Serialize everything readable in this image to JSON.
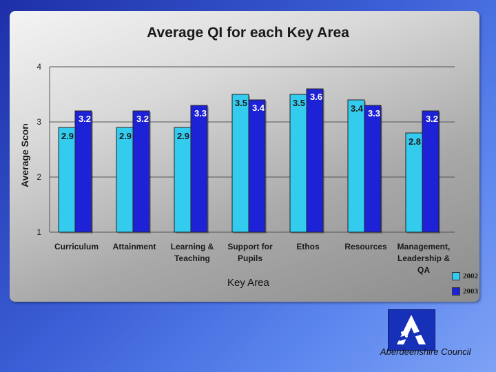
{
  "chart_data": {
    "type": "bar",
    "title": "Average QI  for each Key Area",
    "xlabel": "Key Area",
    "ylabel": "Average Score",
    "ylim": [
      1,
      4
    ],
    "yticks": [
      "1",
      "2",
      "3",
      "4"
    ],
    "grid": true,
    "legend_position": "bottom-right",
    "categories": [
      [
        "Curriculum"
      ],
      [
        "Attainment"
      ],
      [
        "Learning &",
        "Teaching"
      ],
      [
        "Support for",
        "Pupils"
      ],
      [
        "Ethos"
      ],
      [
        "Resources"
      ],
      [
        "Management,",
        "Leadership &",
        "QA"
      ]
    ],
    "series": [
      {
        "name": "2002",
        "color": "#33ccee",
        "values": [
          2.9,
          2.9,
          2.9,
          3.5,
          3.5,
          3.4,
          2.8
        ],
        "labels": [
          "2.9",
          "2.9",
          "2.9",
          "3.5",
          "3.5",
          "3.4",
          "2.8"
        ]
      },
      {
        "name": "2003",
        "color": "#1e22d6",
        "values": [
          3.2,
          3.2,
          3.3,
          3.4,
          3.6,
          3.3,
          3.2
        ],
        "labels": [
          "3.2",
          "3.2",
          "3.3",
          "3.4",
          "3.6",
          "3.3",
          "3.2"
        ]
      }
    ]
  },
  "logo": {
    "name": "aberdeenshire-logo-icon"
  },
  "footer": {
    "council": "Aberdeenshire Council"
  }
}
